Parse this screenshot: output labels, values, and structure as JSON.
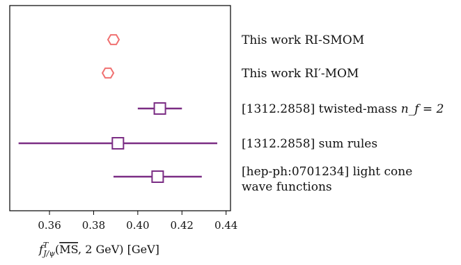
{
  "chart_data": {
    "type": "scatter",
    "title": "",
    "xlabel": "f^T_{J/ψ}(MS, 2 GeV) [GeV]",
    "xlabel_parts": {
      "symbol": "f",
      "superscript": "T",
      "subscript": "J/ψ",
      "scheme": "MS",
      "rest": ", 2 GeV) [GeV]"
    },
    "ylabel": "",
    "xlim": [
      0.342,
      0.442
    ],
    "xticks": [
      "0.36",
      "0.38",
      "0.40",
      "0.42",
      "0.44"
    ],
    "xtick_values": [
      0.36,
      0.38,
      0.4,
      0.42,
      0.44
    ],
    "grid": false,
    "points": [
      {
        "label": "This work RI-SMOM",
        "value": 0.389,
        "err": 0.0025,
        "marker": "hexagon",
        "color": "#f07070"
      },
      {
        "label": "This work RI′-MOM",
        "value": 0.3865,
        "err": 0.0025,
        "marker": "hexagon",
        "color": "#f07070"
      },
      {
        "label": "[1312.2858] twisted-mass ",
        "label_math": "n_f = 2",
        "value": 0.41,
        "err": 0.01,
        "marker": "square",
        "color": "#7b2d84"
      },
      {
        "label": "[1312.2858] sum rules",
        "value": 0.391,
        "err": 0.045,
        "marker": "square",
        "color": "#7b2d84"
      },
      {
        "label": "[hep-ph:0701234] light cone",
        "label_line2": "wave functions",
        "value": 0.409,
        "err": 0.02,
        "marker": "square",
        "color": "#7b2d84"
      }
    ]
  }
}
